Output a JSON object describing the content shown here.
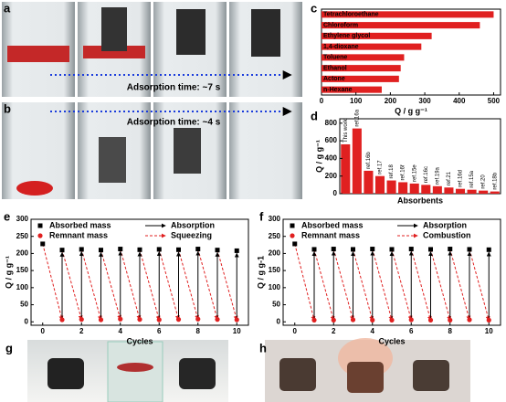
{
  "panel_labels": [
    "a",
    "b",
    "c",
    "d",
    "e",
    "f",
    "g",
    "h"
  ],
  "photo_captions": [
    "Adsorption time: ~7 s",
    "Adsorption time: ~4 s"
  ],
  "chart_data": [
    {
      "type": "hbar",
      "xlabel": "Q / g g⁻¹",
      "color": "#e02020",
      "categories": [
        "Tetrachloroethane",
        "Chloroform",
        "Ethylene glycol",
        "1,4-dioxane",
        "Toluene",
        "Ethanol",
        "Actone",
        "n-Hexane"
      ],
      "values": [
        500,
        460,
        320,
        290,
        240,
        230,
        225,
        175
      ],
      "xlim": [
        0,
        520
      ],
      "xticks": [
        0,
        100,
        200,
        300,
        400,
        500
      ]
    },
    {
      "type": "bar",
      "xlabel": "Absorbents",
      "ylabel": "Q / g g⁻¹",
      "color": "#e02020",
      "categories": [
        "This work",
        "ref.16a",
        "ref.16b",
        "ref.17",
        "ref.18",
        "ref.16f",
        "ref.15e",
        "ref.16c",
        "ref.19a",
        "ref.21",
        "ref.16d",
        "ref.15a",
        "ref.20",
        "ref.18b"
      ],
      "values": [
        560,
        740,
        260,
        200,
        150,
        130,
        115,
        100,
        85,
        70,
        55,
        45,
        35,
        25
      ],
      "ylim": [
        0,
        850
      ],
      "yticks": [
        0,
        200,
        400,
        600,
        800
      ]
    },
    {
      "type": "line",
      "xlabel": "Cycles",
      "ylabel": "Q / g g⁻¹",
      "legend": "top",
      "x": [
        0,
        1,
        2,
        3,
        4,
        5,
        6,
        7,
        8,
        9,
        10
      ],
      "series": [
        {
          "name": "Absorbed mass",
          "color": "#000000",
          "marker": "square",
          "values": [
            228,
            210,
            212,
            210,
            213,
            211,
            212,
            211,
            213,
            210,
            208
          ]
        },
        {
          "name": "Remnant mass",
          "color": "#e02020",
          "marker": "circle",
          "values": [
            null,
            6,
            7,
            6,
            8,
            7,
            6,
            7,
            8,
            7,
            6
          ]
        }
      ],
      "arrows": [
        {
          "name": "Absorption",
          "color": "#000000",
          "dashed": false
        },
        {
          "name": "Squeezing",
          "color": "#e02020",
          "dashed": true
        }
      ],
      "xlim": [
        -0.6,
        10.6
      ],
      "xticks": [
        0,
        2,
        4,
        6,
        8,
        10
      ],
      "ylim": [
        -10,
        300
      ],
      "yticks": [
        0,
        50,
        100,
        150,
        200,
        250,
        300
      ]
    },
    {
      "type": "line",
      "xlabel": "Cycles",
      "ylabel": "Q / g g-1",
      "legend": "top",
      "x": [
        0,
        1,
        2,
        3,
        4,
        5,
        6,
        7,
        8,
        9,
        10
      ],
      "series": [
        {
          "name": "Absorbed mass",
          "color": "#000000",
          "marker": "square",
          "values": [
            228,
            212,
            213,
            212,
            213,
            212,
            213,
            212,
            213,
            212,
            211
          ]
        },
        {
          "name": "Remnant mass",
          "color": "#e02020",
          "marker": "circle",
          "values": [
            null,
            5,
            5,
            6,
            5,
            5,
            6,
            5,
            5,
            6,
            5
          ]
        }
      ],
      "arrows": [
        {
          "name": "Absorption",
          "color": "#000000",
          "dashed": false
        },
        {
          "name": "Combustion",
          "color": "#e02020",
          "dashed": true
        }
      ],
      "xlim": [
        -0.6,
        10.6
      ],
      "xticks": [
        0,
        2,
        4,
        6,
        8,
        10
      ],
      "ylim": [
        -10,
        300
      ],
      "yticks": [
        0,
        50,
        100,
        150,
        200,
        250,
        300
      ]
    }
  ]
}
